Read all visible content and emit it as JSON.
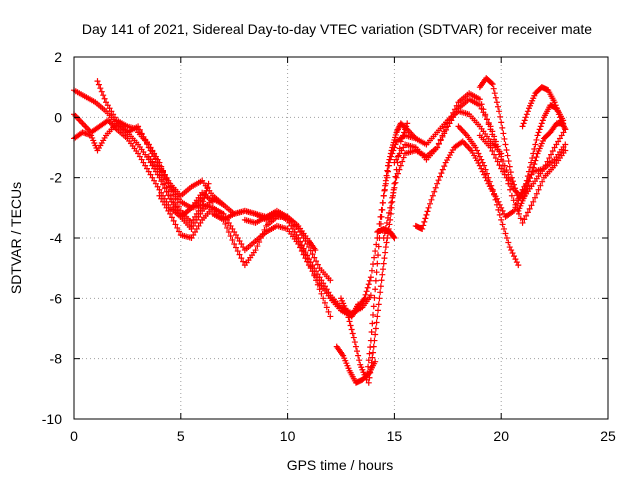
{
  "chart_data": {
    "type": "scatter",
    "title": "Day 141 of 2021, Sidereal Day-to-day VTEC variation (SDTVAR) for receiver mate",
    "xlabel": "GPS time / hours",
    "ylabel": "SDTVAR / TECUs",
    "xlim": [
      0,
      25
    ],
    "ylim": [
      -10,
      2
    ],
    "x_ticks": [
      0,
      5,
      10,
      15,
      20,
      25
    ],
    "y_ticks": [
      -10,
      -8,
      -6,
      -4,
      -2,
      0,
      2
    ],
    "x_tick_labels": [
      "0",
      "5",
      "10",
      "15",
      "20",
      "25"
    ],
    "y_tick_labels": [
      "-10",
      "-8",
      "-6",
      "-4",
      "-2",
      "0",
      "2"
    ],
    "grid": true,
    "marker": "plus",
    "color": "#ff0000",
    "series": [
      {
        "x": [
          0.0,
          0.5,
          1.0,
          1.5,
          2.0,
          2.5,
          3.0,
          3.5,
          4.0,
          4.5,
          5.0,
          5.5,
          6.0,
          6.5
        ],
        "y": [
          0.9,
          0.7,
          0.5,
          0.2,
          -0.2,
          -0.5,
          -0.9,
          -1.4,
          -2.0,
          -2.7,
          -3.3,
          -3.0,
          -2.5,
          -2.8
        ]
      },
      {
        "x": [
          0.0,
          0.4,
          0.8,
          1.2,
          1.6,
          2.0,
          2.5,
          3.0,
          3.5,
          4.0,
          4.5,
          5.0,
          5.5,
          6.0
        ],
        "y": [
          0.1,
          -0.2,
          -0.5,
          -0.3,
          -0.1,
          -0.4,
          -0.7,
          -1.2,
          -1.8,
          -2.4,
          -3.0,
          -3.3,
          -3.0,
          -2.7
        ]
      },
      {
        "x": [
          0.0,
          0.4,
          0.8,
          1.1,
          1.5,
          2.0,
          2.5,
          3.0,
          3.5,
          4.0,
          4.5,
          5.0,
          5.5,
          6.0,
          6.5,
          7.0
        ],
        "y": [
          -0.7,
          -0.5,
          -0.6,
          -1.1,
          -0.6,
          -0.2,
          -0.5,
          -0.3,
          -1.0,
          -1.6,
          -2.2,
          -2.6,
          -2.3,
          -2.1,
          -2.6,
          -2.9
        ]
      },
      {
        "x": [
          1.1,
          1.5,
          2.0,
          2.5,
          3.0,
          3.5,
          4.0,
          4.5,
          5.0,
          5.5,
          6.0,
          6.3
        ],
        "y": [
          1.2,
          0.5,
          -0.1,
          -0.3,
          -0.4,
          -0.9,
          -1.5,
          -2.3,
          -3.1,
          -3.5,
          -2.9,
          -2.2
        ]
      },
      {
        "x": [
          3.0,
          3.5,
          4.0,
          4.5,
          5.0,
          5.5,
          6.0,
          6.5,
          7.0,
          7.5,
          8.0,
          8.5,
          9.0,
          9.5,
          10.0,
          10.5,
          11.0,
          11.3
        ],
        "y": [
          -0.5,
          -0.9,
          -1.6,
          -2.3,
          -2.8,
          -3.0,
          -2.9,
          -3.0,
          -3.4,
          -4.2,
          -4.9,
          -4.4,
          -3.6,
          -3.3,
          -3.3,
          -3.6,
          -4.1,
          -4.4
        ]
      },
      {
        "x": [
          3.5,
          4.0,
          4.5,
          5.0,
          5.5,
          6.0,
          6.5,
          7.0,
          7.5,
          8.0,
          8.5,
          9.0,
          9.5,
          10.0,
          10.5,
          11.0,
          11.5,
          12.0
        ],
        "y": [
          -1.3,
          -1.8,
          -2.6,
          -3.3,
          -3.7,
          -3.1,
          -2.7,
          -2.9,
          -3.2,
          -3.1,
          -3.2,
          -3.3,
          -3.1,
          -3.3,
          -3.7,
          -4.3,
          -5.0,
          -5.4
        ]
      },
      {
        "x": [
          4.0,
          4.5,
          5.0,
          5.5,
          6.0,
          6.5,
          7.0,
          7.5,
          8.0,
          8.5,
          9.0,
          9.5,
          10.0,
          10.5,
          11.0,
          11.5,
          12.0,
          12.5,
          13.0,
          13.3
        ],
        "y": [
          -2.6,
          -3.2,
          -3.9,
          -4.0,
          -3.4,
          -3.0,
          -3.2,
          -3.8,
          -4.4,
          -4.1,
          -3.8,
          -3.6,
          -3.7,
          -4.2,
          -4.9,
          -5.5,
          -6.0,
          -6.4,
          -6.6,
          -6.2
        ]
      },
      {
        "x": [
          6.5,
          7.0,
          7.5,
          8.0,
          8.5,
          9.0,
          9.5,
          10.0,
          10.5,
          11.0,
          11.5,
          12.0
        ],
        "y": [
          -3.2,
          -3.4,
          -3.2,
          -3.1,
          -3.2,
          -3.4,
          -3.2,
          -3.4,
          -4.0,
          -4.8,
          -5.7,
          -6.6
        ]
      },
      {
        "x": [
          8.0,
          8.5,
          9.0,
          9.5,
          10.0,
          10.5,
          11.0,
          11.5,
          12.0,
          12.5,
          13.0,
          13.5,
          13.9
        ],
        "y": [
          -3.4,
          -3.5,
          -3.3,
          -3.2,
          -3.4,
          -4.0,
          -4.7,
          -5.3,
          -5.9,
          -6.3,
          -6.5,
          -6.3,
          -5.9
        ]
      },
      {
        "x": [
          12.3,
          12.6,
          12.9,
          13.2,
          13.5,
          13.8,
          14.1
        ],
        "y": [
          -7.6,
          -7.9,
          -8.4,
          -8.8,
          -8.7,
          -8.5,
          -8.1
        ]
      },
      {
        "x": [
          12.5,
          12.8,
          13.1,
          13.4,
          13.7,
          13.9,
          14.1,
          14.3,
          14.5,
          14.7,
          14.9,
          15.1,
          15.3,
          15.6,
          16.0
        ],
        "y": [
          -6.0,
          -6.5,
          -7.3,
          -8.2,
          -8.7,
          -7.4,
          -5.7,
          -4.0,
          -2.6,
          -1.6,
          -1.0,
          -0.5,
          -0.2,
          -0.4,
          -0.7
        ]
      },
      {
        "x": [
          13.8,
          14.0,
          14.2,
          14.4,
          14.6,
          14.8,
          15.0,
          15.3,
          15.6
        ],
        "y": [
          -8.8,
          -7.8,
          -6.6,
          -5.4,
          -4.3,
          -3.4,
          -2.2,
          -0.8,
          -0.2
        ]
      },
      {
        "x": [
          13.0,
          13.3,
          13.6,
          13.9,
          14.2,
          14.5,
          14.8,
          15.1,
          15.5,
          16.0,
          16.5,
          17.0,
          17.5,
          18.0,
          18.5,
          19.0,
          19.5,
          20.0
        ],
        "y": [
          -6.6,
          -6.3,
          -6.0,
          -5.3,
          -4.0,
          -2.6,
          -1.4,
          -0.8,
          -0.6,
          -0.7,
          -0.9,
          -0.5,
          -0.1,
          0.2,
          0.1,
          -0.3,
          -0.8,
          -1.2
        ]
      },
      {
        "x": [
          14.5,
          14.8,
          15.1,
          15.5,
          16.0,
          16.5,
          17.0,
          17.5,
          18.0,
          18.5,
          19.0,
          19.5,
          20.0,
          20.5
        ],
        "y": [
          -4.0,
          -3.0,
          -2.0,
          -1.2,
          -1.1,
          -1.3,
          -1.0,
          -0.3,
          0.3,
          0.6,
          0.4,
          -0.3,
          -1.3,
          -2.2
        ]
      },
      {
        "x": [
          15.0,
          15.5,
          16.0,
          16.5,
          17.0,
          17.5,
          18.0,
          18.5,
          19.0,
          19.5,
          20.0,
          20.5,
          21.0,
          21.5,
          22.0,
          22.5,
          23.0
        ],
        "y": [
          -1.5,
          -0.9,
          -1.0,
          -1.4,
          -1.0,
          -0.2,
          0.5,
          0.8,
          0.6,
          -0.4,
          -1.4,
          -2.6,
          -3.5,
          -2.8,
          -2.0,
          -1.6,
          -1.1
        ]
      },
      {
        "x": [
          14.2,
          14.5,
          14.8,
          15.0
        ],
        "y": [
          -3.8,
          -3.7,
          -3.8,
          -4.0
        ]
      },
      {
        "x": [
          16.0,
          16.3,
          16.6,
          17.0,
          17.4,
          17.8,
          18.2,
          18.6,
          19.0,
          19.4,
          19.8,
          20.2,
          20.6,
          21.0,
          21.5,
          22.0,
          22.5,
          23.0
        ],
        "y": [
          -3.6,
          -3.7,
          -3.0,
          -2.2,
          -1.5,
          -1.0,
          -0.8,
          -1.1,
          -1.6,
          -2.2,
          -2.7,
          -3.3,
          -3.1,
          -2.4,
          -1.8,
          -1.7,
          -1.4,
          -0.9
        ]
      },
      {
        "x": [
          18.0,
          18.4,
          18.8,
          19.2,
          19.6,
          20.0,
          20.4,
          20.8
        ],
        "y": [
          -0.3,
          -0.6,
          -1.0,
          -1.6,
          -2.4,
          -3.4,
          -4.3,
          -4.9
        ]
      },
      {
        "x": [
          19.0,
          19.3,
          19.6,
          19.9,
          20.2,
          20.5,
          20.8,
          21.1,
          21.4,
          21.7,
          22.0,
          22.3,
          22.6,
          22.9
        ],
        "y": [
          1.0,
          1.3,
          1.1,
          0.2,
          -0.9,
          -2.0,
          -2.7,
          -2.4,
          -1.5,
          -0.6,
          0.0,
          0.4,
          0.3,
          -0.1
        ]
      },
      {
        "x": [
          19.0,
          19.5,
          20.0,
          20.5,
          21.0,
          21.5,
          22.0,
          22.5,
          23.0
        ],
        "y": [
          -0.6,
          -1.0,
          -1.7,
          -2.3,
          -2.7,
          -2.2,
          -1.7,
          -1.0,
          -0.4
        ]
      },
      {
        "x": [
          21.0,
          21.3,
          21.6,
          21.9,
          22.2,
          22.5,
          22.8,
          23.0
        ],
        "y": [
          -0.3,
          0.3,
          0.8,
          1.0,
          0.9,
          0.5,
          -0.1,
          -0.4
        ]
      },
      {
        "x": [
          20.8,
          21.1,
          21.4,
          21.7,
          22.0,
          22.3,
          22.6,
          22.9
        ],
        "y": [
          -3.1,
          -2.6,
          -1.9,
          -1.2,
          -0.7,
          -0.5,
          -0.2,
          -0.2
        ]
      }
    ]
  }
}
